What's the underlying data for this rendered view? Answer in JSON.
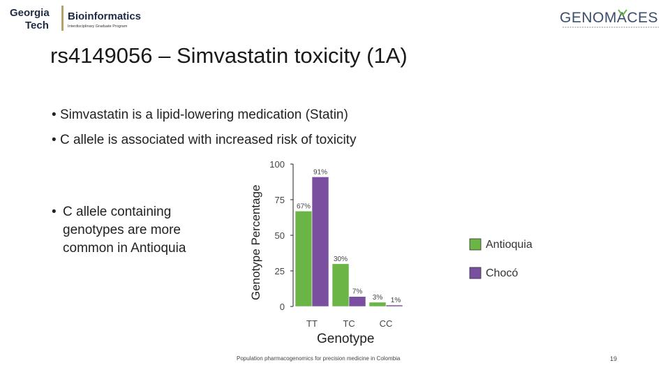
{
  "header": {
    "left_logo": {
      "line1": "Georgia",
      "line2": "Tech",
      "brand": "Bioinformatics",
      "subtitle": "Interdisciplinary Graduate Program"
    },
    "right_logo": {
      "brand": "GENOMACES"
    }
  },
  "slide": {
    "title": "rs4149056  – Simvastatin toxicity (1A)",
    "bullets": [
      "Simvastatin is a lipid-lowering medication (Statin)",
      "C allele is associated with increased risk of toxicity"
    ],
    "side_bullet": "C allele containing genotypes are more common in Antioquia",
    "bullet_char": "•",
    "footer": "Population pharmacogenomics for precision medicine in Colombia",
    "page_number": "19"
  },
  "chart_data": {
    "type": "bar",
    "categories": [
      "TT",
      "TC",
      "CC"
    ],
    "series": [
      {
        "name": "Antioquia",
        "color": "#6ab545",
        "values": [
          67,
          30,
          3
        ],
        "labels": [
          "67%",
          "30%",
          "3%"
        ]
      },
      {
        "name": "Chocó",
        "color": "#7b4fa0",
        "values": [
          91,
          7,
          1
        ],
        "labels": [
          "91%",
          "7%",
          "1%"
        ]
      }
    ],
    "xlabel": "Genotype",
    "ylabel": "Genotype Percentage",
    "yticks": [
      "0",
      "25",
      "50",
      "75",
      "100"
    ],
    "ylim": [
      0,
      100
    ],
    "legend_position": "right"
  }
}
